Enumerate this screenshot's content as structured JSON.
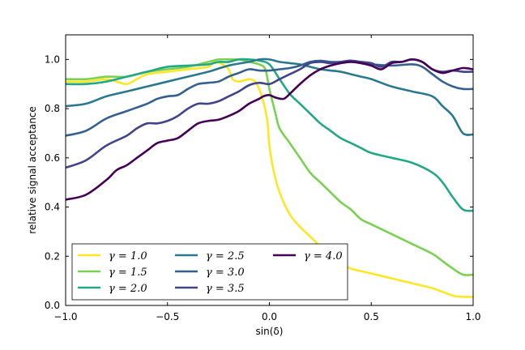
{
  "chart_data": {
    "type": "line",
    "title": "",
    "xlabel": "sin(δ)",
    "ylabel": "relative signal acceptance",
    "xlim": [
      -1.0,
      1.0
    ],
    "ylim": [
      0.0,
      1.1
    ],
    "xticks": [
      -1.0,
      -0.5,
      0.0,
      0.5,
      1.0
    ],
    "xtick_labels": [
      "−1.0",
      "−0.5",
      "0.0",
      "0.5",
      "1.0"
    ],
    "yticks": [
      0.0,
      0.2,
      0.4,
      0.6,
      0.8,
      1.0
    ],
    "ytick_labels": [
      "0.0",
      "0.2",
      "0.4",
      "0.6",
      "0.8",
      "1.0"
    ],
    "grid": false,
    "legend_position": "lower-left",
    "series": [
      {
        "name": "γ = 1.0",
        "color": "#fde725",
        "points": [
          [
            -1.0,
            0.91
          ],
          [
            -0.9,
            0.91
          ],
          [
            -0.8,
            0.92
          ],
          [
            -0.75,
            0.91
          ],
          [
            -0.7,
            0.9
          ],
          [
            -0.65,
            0.92
          ],
          [
            -0.6,
            0.94
          ],
          [
            -0.5,
            0.95
          ],
          [
            -0.4,
            0.96
          ],
          [
            -0.3,
            0.97
          ],
          [
            -0.27,
            0.99
          ],
          [
            -0.23,
            0.98
          ],
          [
            -0.2,
            0.96
          ],
          [
            -0.18,
            0.92
          ],
          [
            -0.15,
            0.91
          ],
          [
            -0.1,
            0.92
          ],
          [
            -0.07,
            0.91
          ],
          [
            -0.05,
            0.88
          ],
          [
            -0.03,
            0.83
          ],
          [
            -0.01,
            0.75
          ],
          [
            0.0,
            0.65
          ],
          [
            0.02,
            0.55
          ],
          [
            0.05,
            0.46
          ],
          [
            0.1,
            0.37
          ],
          [
            0.15,
            0.32
          ],
          [
            0.2,
            0.28
          ],
          [
            0.25,
            0.24
          ],
          [
            0.3,
            0.2
          ],
          [
            0.35,
            0.17
          ],
          [
            0.4,
            0.15
          ],
          [
            0.5,
            0.13
          ],
          [
            0.6,
            0.11
          ],
          [
            0.7,
            0.09
          ],
          [
            0.8,
            0.07
          ],
          [
            0.9,
            0.04
          ],
          [
            0.95,
            0.035
          ],
          [
            1.0,
            0.035
          ]
        ]
      },
      {
        "name": "γ = 1.5",
        "color": "#7ad151",
        "points": [
          [
            -1.0,
            0.92
          ],
          [
            -0.9,
            0.92
          ],
          [
            -0.8,
            0.93
          ],
          [
            -0.7,
            0.93
          ],
          [
            -0.6,
            0.95
          ],
          [
            -0.5,
            0.96
          ],
          [
            -0.4,
            0.97
          ],
          [
            -0.3,
            0.99
          ],
          [
            -0.25,
            1.0
          ],
          [
            -0.2,
            1.0
          ],
          [
            -0.15,
            1.0
          ],
          [
            -0.1,
            0.99
          ],
          [
            -0.05,
            0.98
          ],
          [
            -0.02,
            0.96
          ],
          [
            0.0,
            0.88
          ],
          [
            0.03,
            0.78
          ],
          [
            0.05,
            0.72
          ],
          [
            0.1,
            0.66
          ],
          [
            0.15,
            0.6
          ],
          [
            0.2,
            0.54
          ],
          [
            0.25,
            0.5
          ],
          [
            0.3,
            0.46
          ],
          [
            0.35,
            0.42
          ],
          [
            0.4,
            0.39
          ],
          [
            0.45,
            0.35
          ],
          [
            0.5,
            0.33
          ],
          [
            0.6,
            0.29
          ],
          [
            0.7,
            0.25
          ],
          [
            0.8,
            0.21
          ],
          [
            0.85,
            0.18
          ],
          [
            0.9,
            0.15
          ],
          [
            0.95,
            0.125
          ],
          [
            1.0,
            0.125
          ]
        ]
      },
      {
        "name": "γ = 2.0",
        "color": "#22a884",
        "points": [
          [
            -1.0,
            0.9
          ],
          [
            -0.9,
            0.9
          ],
          [
            -0.8,
            0.91
          ],
          [
            -0.7,
            0.93
          ],
          [
            -0.6,
            0.95
          ],
          [
            -0.5,
            0.97
          ],
          [
            -0.4,
            0.975
          ],
          [
            -0.3,
            0.98
          ],
          [
            -0.25,
            0.99
          ],
          [
            -0.2,
            0.99
          ],
          [
            -0.15,
            1.0
          ],
          [
            -0.1,
            1.0
          ],
          [
            -0.05,
            0.995
          ],
          [
            0.0,
            0.98
          ],
          [
            0.05,
            0.92
          ],
          [
            0.1,
            0.86
          ],
          [
            0.15,
            0.82
          ],
          [
            0.2,
            0.78
          ],
          [
            0.25,
            0.74
          ],
          [
            0.3,
            0.71
          ],
          [
            0.35,
            0.68
          ],
          [
            0.4,
            0.66
          ],
          [
            0.45,
            0.64
          ],
          [
            0.5,
            0.62
          ],
          [
            0.6,
            0.6
          ],
          [
            0.7,
            0.58
          ],
          [
            0.8,
            0.54
          ],
          [
            0.85,
            0.5
          ],
          [
            0.9,
            0.44
          ],
          [
            0.95,
            0.39
          ],
          [
            1.0,
            0.385
          ]
        ]
      },
      {
        "name": "γ = 2.5",
        "color": "#2a788e",
        "points": [
          [
            -1.0,
            0.81
          ],
          [
            -0.9,
            0.82
          ],
          [
            -0.8,
            0.85
          ],
          [
            -0.7,
            0.87
          ],
          [
            -0.6,
            0.89
          ],
          [
            -0.5,
            0.91
          ],
          [
            -0.4,
            0.93
          ],
          [
            -0.3,
            0.95
          ],
          [
            -0.2,
            0.975
          ],
          [
            -0.1,
            0.99
          ],
          [
            -0.05,
            1.0
          ],
          [
            0.0,
            1.0
          ],
          [
            0.05,
            0.99
          ],
          [
            0.1,
            0.985
          ],
          [
            0.15,
            0.98
          ],
          [
            0.2,
            0.97
          ],
          [
            0.25,
            0.96
          ],
          [
            0.3,
            0.955
          ],
          [
            0.35,
            0.95
          ],
          [
            0.4,
            0.94
          ],
          [
            0.45,
            0.93
          ],
          [
            0.5,
            0.92
          ],
          [
            0.6,
            0.89
          ],
          [
            0.7,
            0.87
          ],
          [
            0.8,
            0.85
          ],
          [
            0.85,
            0.81
          ],
          [
            0.9,
            0.77
          ],
          [
            0.95,
            0.7
          ],
          [
            1.0,
            0.695
          ]
        ]
      },
      {
        "name": "γ = 3.0",
        "color": "#355f8d",
        "points": [
          [
            -1.0,
            0.69
          ],
          [
            -0.9,
            0.71
          ],
          [
            -0.8,
            0.76
          ],
          [
            -0.7,
            0.79
          ],
          [
            -0.6,
            0.82
          ],
          [
            -0.55,
            0.84
          ],
          [
            -0.5,
            0.85
          ],
          [
            -0.45,
            0.855
          ],
          [
            -0.4,
            0.88
          ],
          [
            -0.35,
            0.9
          ],
          [
            -0.3,
            0.905
          ],
          [
            -0.25,
            0.91
          ],
          [
            -0.2,
            0.93
          ],
          [
            -0.15,
            0.945
          ],
          [
            -0.1,
            0.96
          ],
          [
            -0.05,
            0.955
          ],
          [
            0.0,
            0.955
          ],
          [
            0.05,
            0.96
          ],
          [
            0.1,
            0.965
          ],
          [
            0.15,
            0.975
          ],
          [
            0.2,
            0.99
          ],
          [
            0.25,
            0.995
          ],
          [
            0.3,
            0.99
          ],
          [
            0.35,
            0.99
          ],
          [
            0.4,
            0.995
          ],
          [
            0.45,
            0.985
          ],
          [
            0.5,
            0.98
          ],
          [
            0.6,
            0.975
          ],
          [
            0.7,
            0.98
          ],
          [
            0.75,
            0.97
          ],
          [
            0.8,
            0.94
          ],
          [
            0.85,
            0.91
          ],
          [
            0.9,
            0.89
          ],
          [
            0.95,
            0.88
          ],
          [
            1.0,
            0.88
          ]
        ]
      },
      {
        "name": "γ = 3.5",
        "color": "#414487",
        "points": [
          [
            -1.0,
            0.56
          ],
          [
            -0.9,
            0.59
          ],
          [
            -0.8,
            0.65
          ],
          [
            -0.7,
            0.69
          ],
          [
            -0.65,
            0.72
          ],
          [
            -0.6,
            0.74
          ],
          [
            -0.55,
            0.74
          ],
          [
            -0.5,
            0.75
          ],
          [
            -0.45,
            0.77
          ],
          [
            -0.4,
            0.8
          ],
          [
            -0.35,
            0.82
          ],
          [
            -0.3,
            0.82
          ],
          [
            -0.25,
            0.83
          ],
          [
            -0.2,
            0.85
          ],
          [
            -0.15,
            0.87
          ],
          [
            -0.1,
            0.895
          ],
          [
            -0.05,
            0.905
          ],
          [
            0.0,
            0.9
          ],
          [
            0.05,
            0.92
          ],
          [
            0.1,
            0.94
          ],
          [
            0.15,
            0.96
          ],
          [
            0.2,
            0.985
          ],
          [
            0.25,
            0.99
          ],
          [
            0.3,
            0.985
          ],
          [
            0.35,
            0.99
          ],
          [
            0.4,
            0.995
          ],
          [
            0.45,
            0.99
          ],
          [
            0.5,
            0.985
          ],
          [
            0.55,
            0.97
          ],
          [
            0.6,
            0.99
          ],
          [
            0.65,
            0.99
          ],
          [
            0.7,
            1.0
          ],
          [
            0.75,
            0.99
          ],
          [
            0.8,
            0.96
          ],
          [
            0.85,
            0.95
          ],
          [
            0.9,
            0.955
          ],
          [
            0.95,
            0.95
          ],
          [
            1.0,
            0.95
          ]
        ]
      },
      {
        "name": "γ = 4.0",
        "color": "#440154",
        "points": [
          [
            -1.0,
            0.43
          ],
          [
            -0.9,
            0.45
          ],
          [
            -0.8,
            0.51
          ],
          [
            -0.75,
            0.55
          ],
          [
            -0.7,
            0.57
          ],
          [
            -0.65,
            0.6
          ],
          [
            -0.6,
            0.63
          ],
          [
            -0.55,
            0.66
          ],
          [
            -0.5,
            0.67
          ],
          [
            -0.45,
            0.68
          ],
          [
            -0.4,
            0.71
          ],
          [
            -0.35,
            0.74
          ],
          [
            -0.3,
            0.75
          ],
          [
            -0.25,
            0.755
          ],
          [
            -0.2,
            0.77
          ],
          [
            -0.15,
            0.79
          ],
          [
            -0.1,
            0.82
          ],
          [
            -0.05,
            0.84
          ],
          [
            -0.03,
            0.85
          ],
          [
            0.0,
            0.855
          ],
          [
            0.03,
            0.845
          ],
          [
            0.07,
            0.84
          ],
          [
            0.1,
            0.86
          ],
          [
            0.15,
            0.9
          ],
          [
            0.2,
            0.935
          ],
          [
            0.25,
            0.96
          ],
          [
            0.3,
            0.975
          ],
          [
            0.35,
            0.985
          ],
          [
            0.4,
            0.99
          ],
          [
            0.45,
            0.985
          ],
          [
            0.5,
            0.975
          ],
          [
            0.55,
            0.96
          ],
          [
            0.6,
            0.985
          ],
          [
            0.65,
            0.99
          ],
          [
            0.7,
            1.0
          ],
          [
            0.75,
            0.99
          ],
          [
            0.8,
            0.96
          ],
          [
            0.85,
            0.945
          ],
          [
            0.9,
            0.955
          ],
          [
            0.95,
            0.965
          ],
          [
            1.0,
            0.96
          ]
        ]
      }
    ]
  }
}
